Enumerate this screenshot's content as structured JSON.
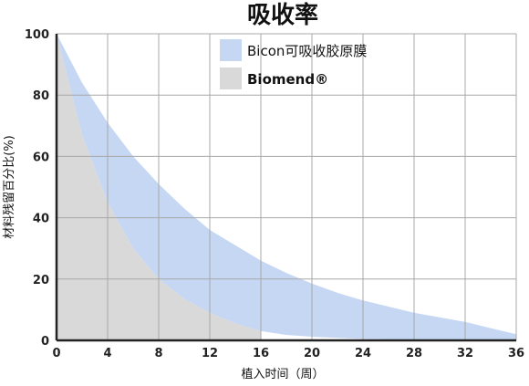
{
  "chart_data": {
    "type": "area",
    "title": "吸收率",
    "xlabel": "植入时间（周）",
    "ylabel": "材料残留百分比(%)",
    "x_ticks": [
      0,
      4,
      8,
      12,
      16,
      20,
      24,
      28,
      32,
      36
    ],
    "y_ticks": [
      0,
      20,
      40,
      60,
      80,
      100
    ],
    "xlim": [
      0,
      36
    ],
    "ylim": [
      0,
      100
    ],
    "grid": true,
    "legend_position": "top-right",
    "series": [
      {
        "name": "Bicon可吸收胶原膜",
        "color": "#c5d7f2",
        "x": [
          0,
          2,
          4,
          6,
          8,
          10,
          12,
          14,
          16,
          18,
          20,
          22,
          24,
          26,
          28,
          30,
          32,
          34,
          36
        ],
        "upper": [
          100,
          84,
          71,
          60,
          51,
          43,
          36,
          31,
          26,
          22,
          18.5,
          15.5,
          13,
          11,
          9,
          7.5,
          6,
          4,
          2
        ],
        "lower": [
          100,
          67,
          45,
          30,
          20,
          13.5,
          9,
          5.5,
          3,
          1.8,
          1.2,
          0.8,
          0.5,
          0.3,
          0.2,
          0.1,
          0.05,
          0.02,
          0
        ]
      },
      {
        "name": "Biomend",
        "legend_label": "Biomend®",
        "color": "#d9d9d9",
        "x": [
          0,
          2,
          4,
          6,
          8,
          10,
          12,
          14,
          16
        ],
        "upper": [
          100,
          67,
          45,
          30,
          20,
          13.5,
          9,
          5.5,
          3
        ],
        "lower": [
          0,
          0,
          0,
          0,
          0,
          0,
          0,
          0,
          0
        ]
      }
    ]
  }
}
